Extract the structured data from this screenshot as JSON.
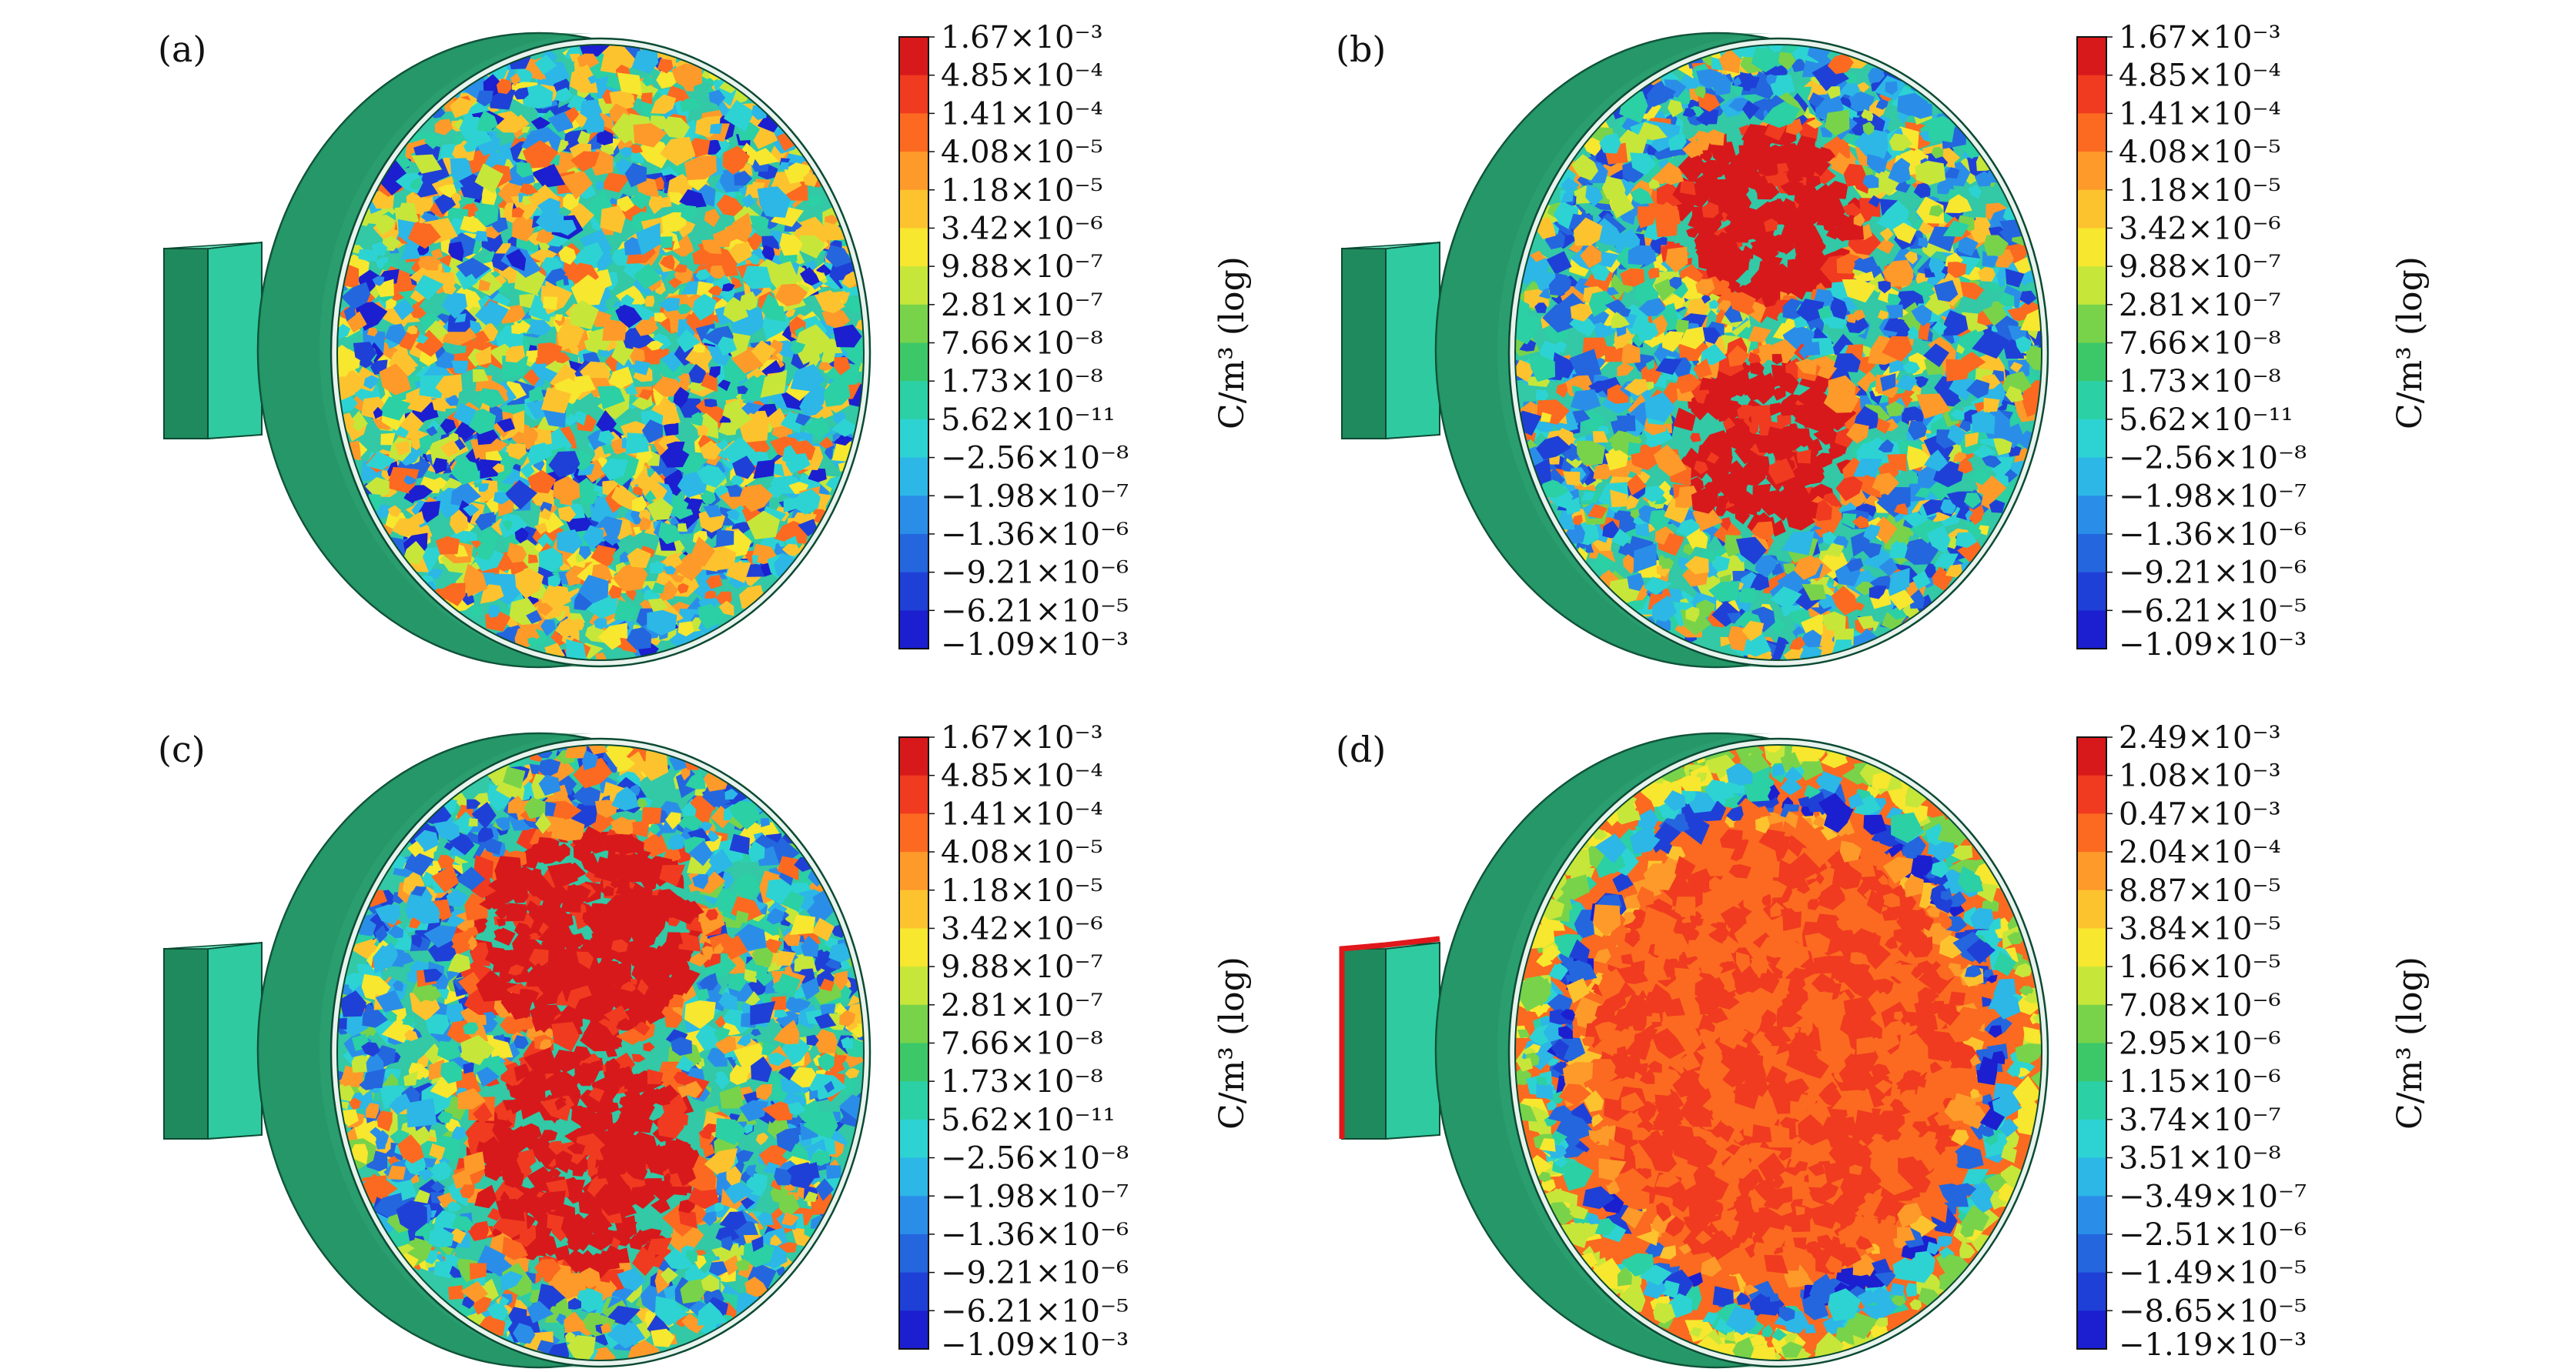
{
  "panels": [
    {
      "label": "(a)",
      "state": "scattered",
      "unit": "C/m³ (log)",
      "colorbar_ticks": [
        "1.67×10⁻³",
        "4.85×10⁻⁴",
        "1.41×10⁻⁴",
        "4.08×10⁻⁵",
        "1.18×10⁻⁵",
        "3.42×10⁻⁶",
        "9.88×10⁻⁷",
        "2.81×10⁻⁷",
        "7.66×10⁻⁸",
        "1.73×10⁻⁸",
        "5.62×10⁻¹¹",
        "−2.56×10⁻⁸",
        "−1.98×10⁻⁷",
        "−1.36×10⁻⁶",
        "−9.21×10⁻⁶",
        "−6.21×10⁻⁵",
        "−1.09×10⁻³"
      ]
    },
    {
      "label": "(b)",
      "state": "two-blobs-small",
      "unit": "C/m³ (log)",
      "colorbar_ticks": [
        "1.67×10⁻³",
        "4.85×10⁻⁴",
        "1.41×10⁻⁴",
        "4.08×10⁻⁵",
        "1.18×10⁻⁵",
        "3.42×10⁻⁶",
        "9.88×10⁻⁷",
        "2.81×10⁻⁷",
        "7.66×10⁻⁸",
        "1.73×10⁻⁸",
        "5.62×10⁻¹¹",
        "−2.56×10⁻⁸",
        "−1.98×10⁻⁷",
        "−1.36×10⁻⁶",
        "−9.21×10⁻⁶",
        "−6.21×10⁻⁵",
        "−1.09×10⁻³"
      ]
    },
    {
      "label": "(c)",
      "state": "two-blobs-large",
      "unit": "C/m³ (log)",
      "colorbar_ticks": [
        "1.67×10⁻³",
        "4.85×10⁻⁴",
        "1.41×10⁻⁴",
        "4.08×10⁻⁵",
        "1.18×10⁻⁵",
        "3.42×10⁻⁶",
        "9.88×10⁻⁷",
        "2.81×10⁻⁷",
        "7.66×10⁻⁸",
        "1.73×10⁻⁸",
        "5.62×10⁻¹¹",
        "−2.56×10⁻⁸",
        "−1.98×10⁻⁷",
        "−1.36×10⁻⁶",
        "−9.21×10⁻⁶",
        "−6.21×10⁻⁵",
        "−1.09×10⁻³"
      ]
    },
    {
      "label": "(d)",
      "state": "filled",
      "unit": "C/m³ (log)",
      "colorbar_ticks": [
        "2.49×10⁻³",
        "1.08×10⁻³",
        "0.47×10⁻³",
        "2.04×10⁻⁴",
        "8.87×10⁻⁵",
        "3.84×10⁻⁵",
        "1.66×10⁻⁵",
        "7.08×10⁻⁶",
        "2.95×10⁻⁶",
        "1.15×10⁻⁶",
        "3.74×10⁻⁷",
        "3.51×10⁻⁸",
        "−3.49×10⁻⁷",
        "−2.51×10⁻⁶",
        "−1.49×10⁻⁵",
        "−8.65×10⁻⁵",
        "−1.19×10⁻³"
      ]
    }
  ],
  "colormap": [
    "#d7191c",
    "#f03b20",
    "#fb6a20",
    "#fd9a2a",
    "#fdc32e",
    "#f7e72f",
    "#c7e63a",
    "#78d34a",
    "#3cc868",
    "#2bd0a5",
    "#2dd3d3",
    "#2cb7e6",
    "#2a8ee8",
    "#2466de",
    "#1f40d6",
    "#1b1fcf"
  ],
  "body_colors": {
    "rim": "#2a9e6f",
    "rim_dark": "#1f8a5d",
    "tab_front": "#2fcaa0",
    "tab_side": "#1f9467",
    "face_base": "#33c8a6"
  }
}
